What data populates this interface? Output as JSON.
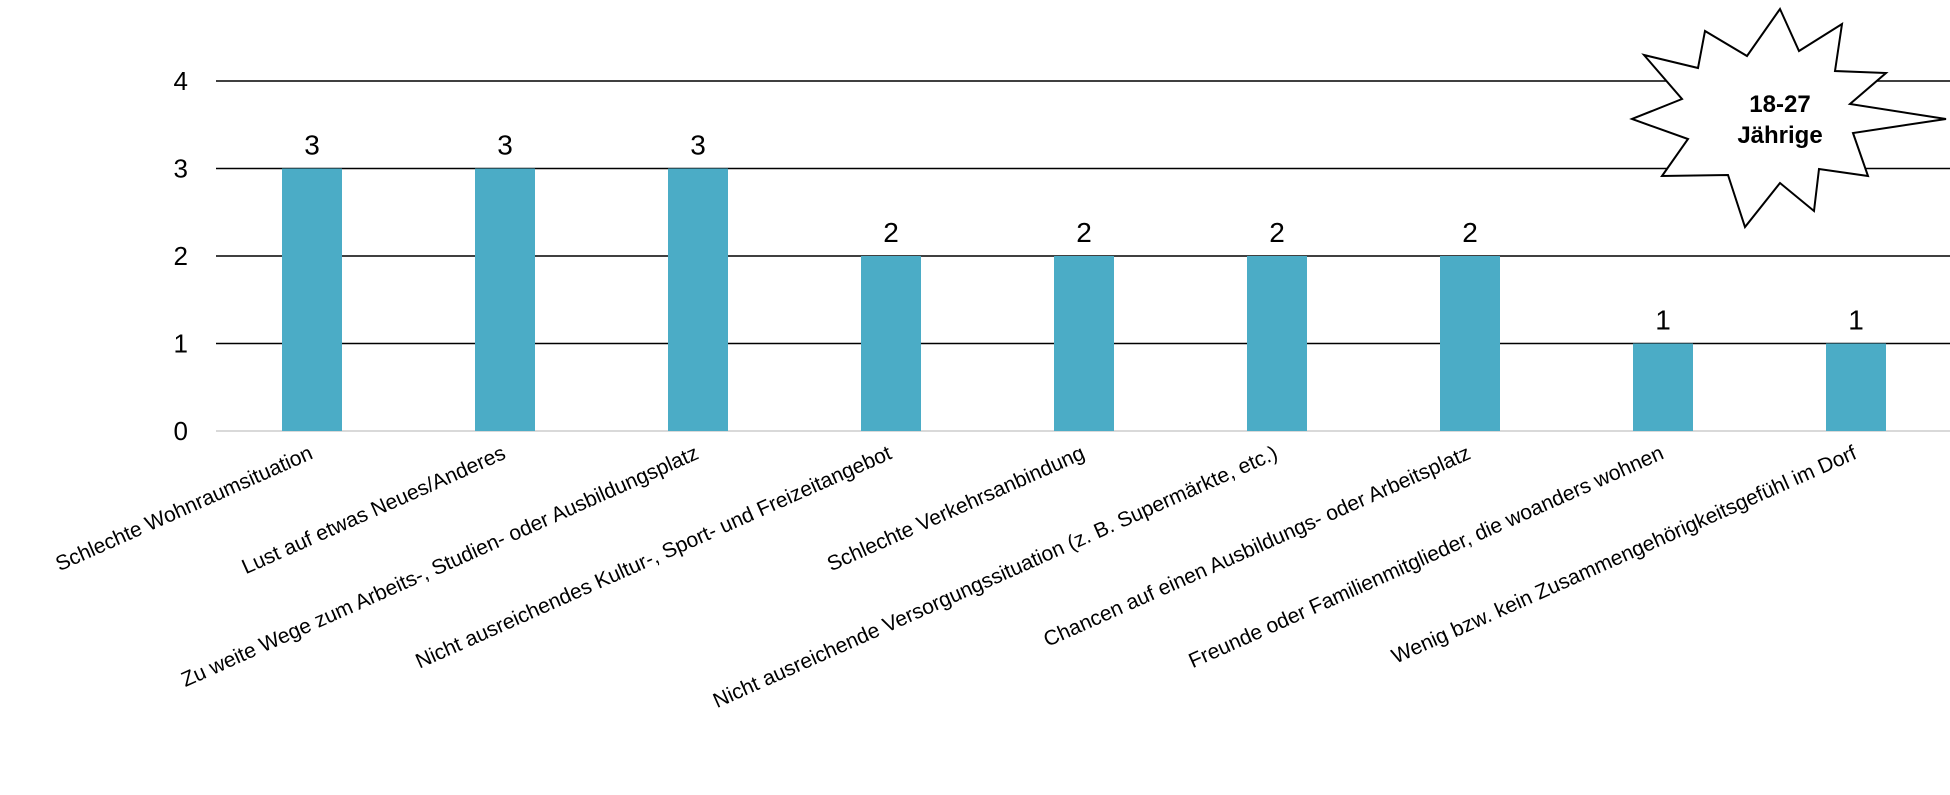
{
  "chart_data": {
    "type": "bar",
    "title": "",
    "xlabel": "",
    "ylabel": "",
    "ylim": [
      0,
      4
    ],
    "yticks": [
      "0",
      "1",
      "2",
      "3",
      "4"
    ],
    "grid": true,
    "bar_color": "#4BACC6",
    "categories": [
      "Schlechte Wohnraumsituation",
      "Lust auf etwas Neues/Anderes",
      "Zu weite Wege zum Arbeits-, Studien- oder Ausbildungsplatz",
      "Nicht ausreichendes Kultur-, Sport- und Freizeitangebot",
      "Schlechte Verkehrsanbindung",
      "Nicht ausreichende Versorgungssituation (z. B. Supermärkte, etc.)",
      "Chancen auf einen Ausbildungs- oder Arbeitsplatz",
      "Freunde oder Familienmitglieder, die woanders wohnen",
      "Wenig bzw. kein Zusammengehörigkeitsgefühl im Dorf"
    ],
    "values": [
      3,
      3,
      3,
      2,
      2,
      2,
      2,
      1,
      1
    ],
    "data_labels": [
      "3",
      "3",
      "3",
      "2",
      "2",
      "2",
      "2",
      "1",
      "1"
    ]
  },
  "badge": {
    "line1": "18-27",
    "line2": "Jährige"
  }
}
